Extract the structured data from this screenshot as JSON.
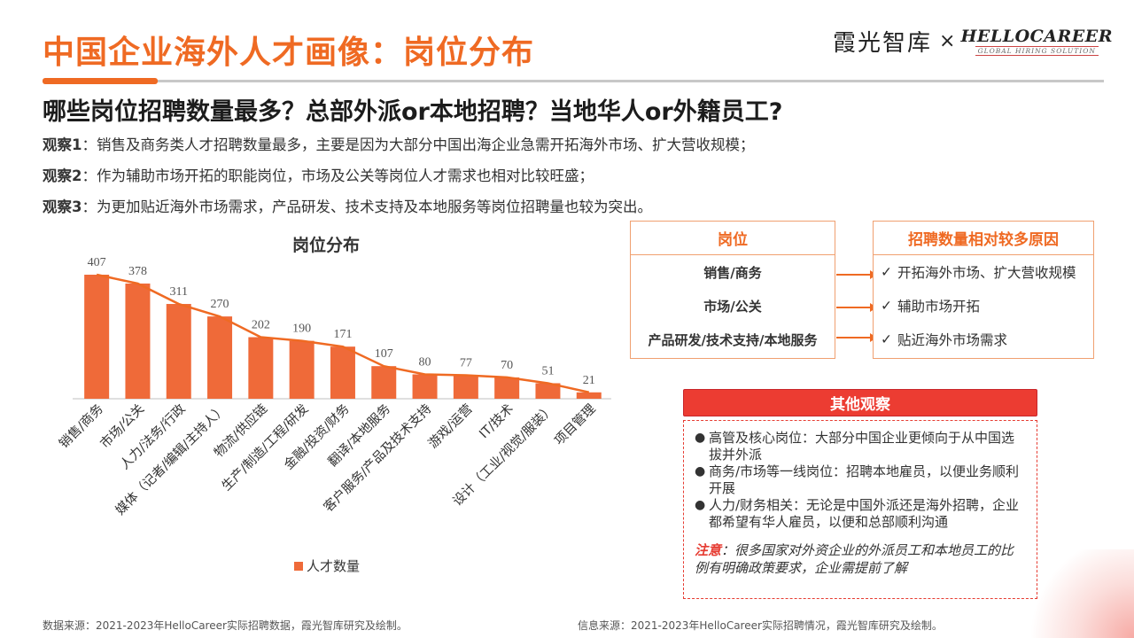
{
  "header": {
    "title": "中国企业海外人才画像：岗位分布",
    "brand_cn": "霞光智库",
    "brand_x": "×",
    "brand_en": "HELLOCAREER",
    "brand_tagline": "GLOBAL HIRING SOLUTION"
  },
  "subtitle": "哪些岗位招聘数量最多？总部外派or本地招聘？当地华人or外籍员工?",
  "observations": [
    {
      "label": "观察1",
      "text": "：销售及商务类人才招聘数量最多，主要是因为大部分中国出海企业急需开拓海外市场、扩大营收规模；"
    },
    {
      "label": "观察2",
      "text": "：作为辅助市场开拓的职能岗位，市场及公关等岗位人才需求也相对比较旺盛；"
    },
    {
      "label": "观察3",
      "text": "：为更加贴近海外市场需求，产品研发、技术支持及本地服务等岗位招聘量也较为突出。"
    }
  ],
  "chart_data": {
    "type": "bar",
    "title": "岗位分布",
    "categories": [
      "销售/商务",
      "市场/公关",
      "人力/法务/行政",
      "媒体（记者/编辑/主持人）",
      "物流/供应链",
      "生产/制造/工程/研发",
      "金融/投资/财务",
      "翻译/本地服务",
      "客户服务/产品及技术支持",
      "游戏/运营",
      "IT/技术",
      "设计（工业/视觉/服装）",
      "项目管理"
    ],
    "series": [
      {
        "name": "人才数量",
        "values": [
          407,
          378,
          311,
          270,
          202,
          190,
          171,
          107,
          80,
          77,
          70,
          51,
          21
        ]
      }
    ],
    "overlay_line": "trend line through bar tops",
    "bar_color": "#ef6a39",
    "line_color": "#ef6a23",
    "ylim": [
      0,
      420
    ],
    "grid": false,
    "legend_position": "bottom"
  },
  "reasons_table": {
    "position_header": "岗位",
    "reason_header": "招聘数量相对较多原因",
    "check_icon": "check-icon",
    "rows": [
      {
        "position": "销售/商务",
        "check": "✓",
        "reason": "开拓海外市场、扩大营收规模"
      },
      {
        "position": "市场/公关",
        "check": "✓",
        "reason": "辅助市场开拓"
      },
      {
        "position": "产品研发/技术支持/本地服务",
        "check": "✓",
        "reason": "贴近海外市场需求"
      }
    ]
  },
  "other": {
    "header": "其他观察",
    "bullet_char": "●",
    "bullets": [
      "高管及核心岗位：大部分中国企业更倾向于从中国选拔并外派",
      "商务/市场等一线岗位：招聘本地雇员，以便业务顺利开展",
      "人力/财务相关：无论是中国外派还是海外招聘，企业都希望有华人雇员，以便和总部顺利沟通"
    ],
    "note_label": "注意",
    "note_text": "：很多国家对外资企业的外派员工和本地员工的比例有明确政策要求，企业需提前了解"
  },
  "footer": {
    "source_left": "数据来源：2021-2023年HelloCareer实际招聘数据，霞光智库研究及绘制。",
    "source_right": "信息来源：2021-2023年HelloCareer实际招聘情况，霞光智库研究及绘制。"
  },
  "colors": {
    "accent": "#ef6a23",
    "red": "#ec3c32",
    "border": "#f0a070"
  }
}
